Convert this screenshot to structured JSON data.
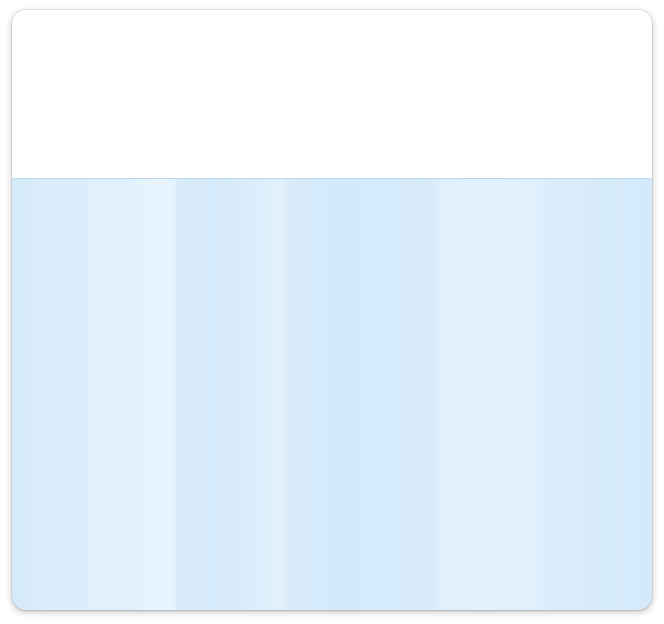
{
  "panel": {
    "top_section": {},
    "bottom_section": {
      "fill_color": "#d5eafa",
      "divider_color": "#b9d6ec"
    }
  }
}
